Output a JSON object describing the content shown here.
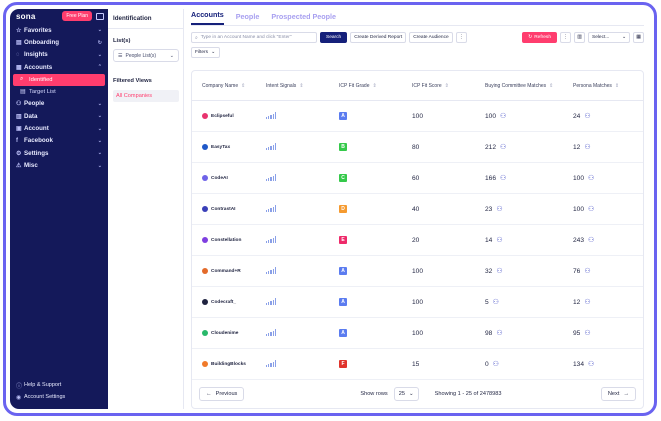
{
  "sidebar": {
    "logo": "sona",
    "plan_badge": "Free Plan",
    "items": [
      {
        "label": "Favorites",
        "icon": "star-icon",
        "chev": "⌄"
      },
      {
        "label": "Onboarding",
        "icon": "clipboard-icon",
        "chev": "↻"
      },
      {
        "label": "Insights",
        "icon": "bulb-icon",
        "chev": "⌄"
      },
      {
        "label": "Accounts",
        "icon": "building-icon",
        "chev": "⌃"
      }
    ],
    "sub_items": [
      {
        "label": "Identified",
        "icon": "search-icon"
      },
      {
        "label": "Target List",
        "icon": "list-icon"
      }
    ],
    "items2": [
      {
        "label": "People",
        "icon": "people-icon"
      },
      {
        "label": "Data",
        "icon": "database-icon"
      },
      {
        "label": "Account",
        "icon": "account-icon"
      },
      {
        "label": "Facebook",
        "icon": "facebook-icon"
      },
      {
        "label": "Settings",
        "icon": "gear-icon"
      },
      {
        "label": "Misc",
        "icon": "misc-icon"
      }
    ],
    "bottom": [
      {
        "label": "Help & Support",
        "icon": "help-icon"
      },
      {
        "label": "Account Settings",
        "icon": "user-icon"
      }
    ]
  },
  "panel": {
    "title": "Identification",
    "lists_label": "List(s)",
    "list_select": "People List(s)",
    "filtered_views_label": "Filtered Views",
    "active_view": "All Companies"
  },
  "tabs": [
    "Accounts",
    "People",
    "Prospected People"
  ],
  "toolbar": {
    "search_placeholder": "Type in an Account Name and click \"Enter\"",
    "search_button": "Search",
    "derived_report": "Create Derived Report",
    "create_audience": "Create Audience",
    "more": "⋮",
    "refresh": "Refresh",
    "select_placeholder": "Select...",
    "filters": "Filters"
  },
  "columns": [
    "Company Name",
    "Intent Signals",
    "ICP Fit Grade",
    "ICP Fit Score",
    "Buying Committee Matches",
    "Persona Matches"
  ],
  "grade_colors": {
    "A": "#5b7cf0",
    "B": "#35c94a",
    "C": "#35c94a",
    "D": "#f59a2f",
    "E": "#ee2a6a",
    "F": "#e0342c"
  },
  "rows": [
    {
      "name": "Eclipseful",
      "logo_color": "#e8336e",
      "grade": "A",
      "score": "100",
      "buying": "100",
      "persona": "24"
    },
    {
      "name": "EasyTax",
      "logo_color": "#1f58c8",
      "grade": "B",
      "score": "80",
      "buying": "212",
      "persona": "12"
    },
    {
      "name": "CodeAI",
      "logo_color": "#6f63e8",
      "grade": "C",
      "score": "60",
      "buying": "166",
      "persona": "100"
    },
    {
      "name": "ContrastAI",
      "logo_color": "#3a3fb8",
      "grade": "D",
      "score": "40",
      "buying": "23",
      "persona": "100"
    },
    {
      "name": "Constellation",
      "logo_color": "#7e3fe0",
      "grade": "E",
      "score": "20",
      "buying": "14",
      "persona": "243"
    },
    {
      "name": "Command+R",
      "logo_color": "#e36a2a",
      "grade": "A",
      "score": "100",
      "buying": "32",
      "persona": "76"
    },
    {
      "name": "Codecraft_",
      "logo_color": "#1f2340",
      "grade": "A",
      "score": "100",
      "buying": "5",
      "persona": "12"
    },
    {
      "name": "Cloudenime",
      "logo_color": "#29b86a",
      "grade": "A",
      "score": "100",
      "buying": "98",
      "persona": "95"
    },
    {
      "name": "BuildingBlocks",
      "logo_color": "#f07a2a",
      "grade": "F",
      "score": "15",
      "buying": "0",
      "persona": "134"
    }
  ],
  "pager": {
    "previous": "Previous",
    "show_rows_label": "Show rows",
    "rows_value": "25",
    "showing": "Showing 1 - 25 of 2478983",
    "next": "Next"
  }
}
